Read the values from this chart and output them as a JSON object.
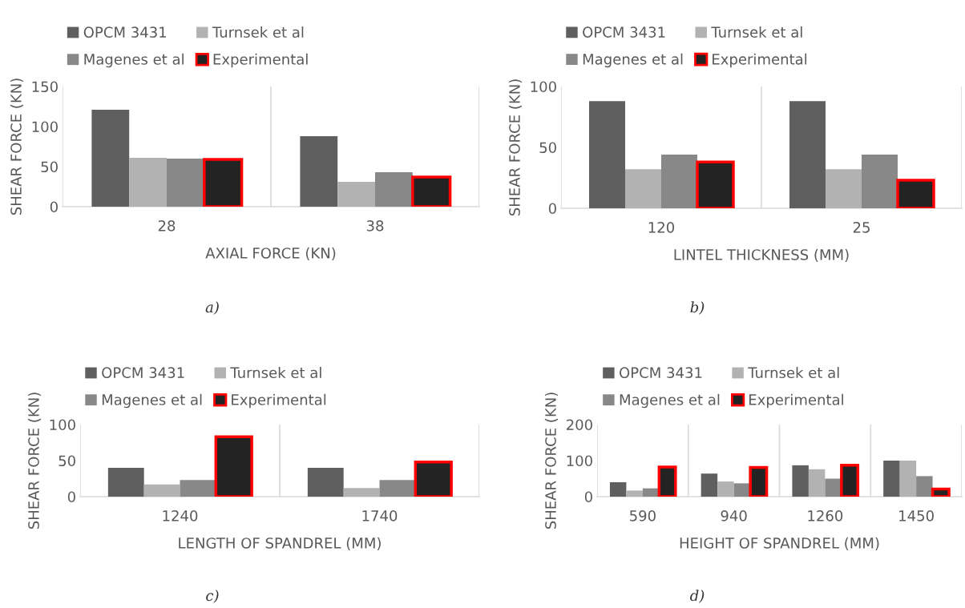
{
  "chart_data": [
    {
      "type": "bar",
      "xlabel": "AXIAL FORCE (KN)",
      "ylabel": "SHEAR FORCE (KN)",
      "categories": [
        "28",
        "38"
      ],
      "ylim": [
        0,
        150
      ],
      "yticks": [
        0,
        50,
        100,
        150
      ],
      "legend": "top",
      "annotations": [
        "a)"
      ],
      "series": [
        {
          "name": "OPCM 3431",
          "color": "#5f5f5f",
          "values": [
            121,
            88
          ]
        },
        {
          "name": "Turnsek et al",
          "color": "#b2b2b2",
          "values": [
            61,
            31
          ]
        },
        {
          "name": "Magenes et al",
          "color": "#888888",
          "values": [
            60,
            43
          ]
        },
        {
          "name": "Experimental",
          "color": "#232323",
          "values": [
            59,
            37
          ]
        }
      ]
    },
    {
      "type": "bar",
      "xlabel": "LINTEL THICKNESS (MM)",
      "ylabel": "SHEAR FORCE (KN)",
      "categories": [
        "120",
        "25"
      ],
      "ylim": [
        0,
        100
      ],
      "yticks": [
        0,
        50,
        100
      ],
      "legend": "top",
      "annotations": [
        "b)"
      ],
      "series": [
        {
          "name": "OPCM 3431",
          "color": "#5f5f5f",
          "values": [
            88,
            88
          ]
        },
        {
          "name": "Turnsek et al",
          "color": "#b2b2b2",
          "values": [
            32,
            32
          ]
        },
        {
          "name": "Magenes et al",
          "color": "#888888",
          "values": [
            44,
            44
          ]
        },
        {
          "name": "Experimental",
          "color": "#232323",
          "values": [
            38,
            23
          ]
        }
      ]
    },
    {
      "type": "bar",
      "xlabel": "LENGTH OF SPANDREL (MM)",
      "ylabel": "SHEAR FORCE (KN)",
      "categories": [
        "1240",
        "1740"
      ],
      "ylim": [
        0,
        100
      ],
      "yticks": [
        0,
        50,
        100
      ],
      "legend": "top",
      "annotations": [
        "c)"
      ],
      "series": [
        {
          "name": "OPCM 3431",
          "color": "#5f5f5f",
          "values": [
            40,
            40
          ]
        },
        {
          "name": "Turnsek et al",
          "color": "#b2b2b2",
          "values": [
            17,
            12
          ]
        },
        {
          "name": "Magenes et al",
          "color": "#888888",
          "values": [
            23,
            23
          ]
        },
        {
          "name": "Experimental",
          "color": "#232323",
          "values": [
            83,
            48
          ]
        }
      ]
    },
    {
      "type": "bar",
      "xlabel": "HEIGHT OF SPANDREL (MM)",
      "ylabel": "SHEAR FORCE (KN)",
      "categories": [
        "590",
        "940",
        "1260",
        "1450"
      ],
      "ylim": [
        0,
        200
      ],
      "yticks": [
        0,
        100,
        200
      ],
      "legend": "top",
      "annotations": [
        "d)"
      ],
      "series": [
        {
          "name": "OPCM 3431",
          "color": "#5f5f5f",
          "values": [
            40,
            64,
            87,
            100
          ]
        },
        {
          "name": "Turnsek et al",
          "color": "#b2b2b2",
          "values": [
            17,
            42,
            76,
            100
          ]
        },
        {
          "name": "Magenes et al",
          "color": "#888888",
          "values": [
            23,
            37,
            50,
            57
          ]
        },
        {
          "name": "Experimental",
          "color": "#232323",
          "values": [
            82,
            81,
            87,
            21
          ]
        }
      ]
    }
  ]
}
